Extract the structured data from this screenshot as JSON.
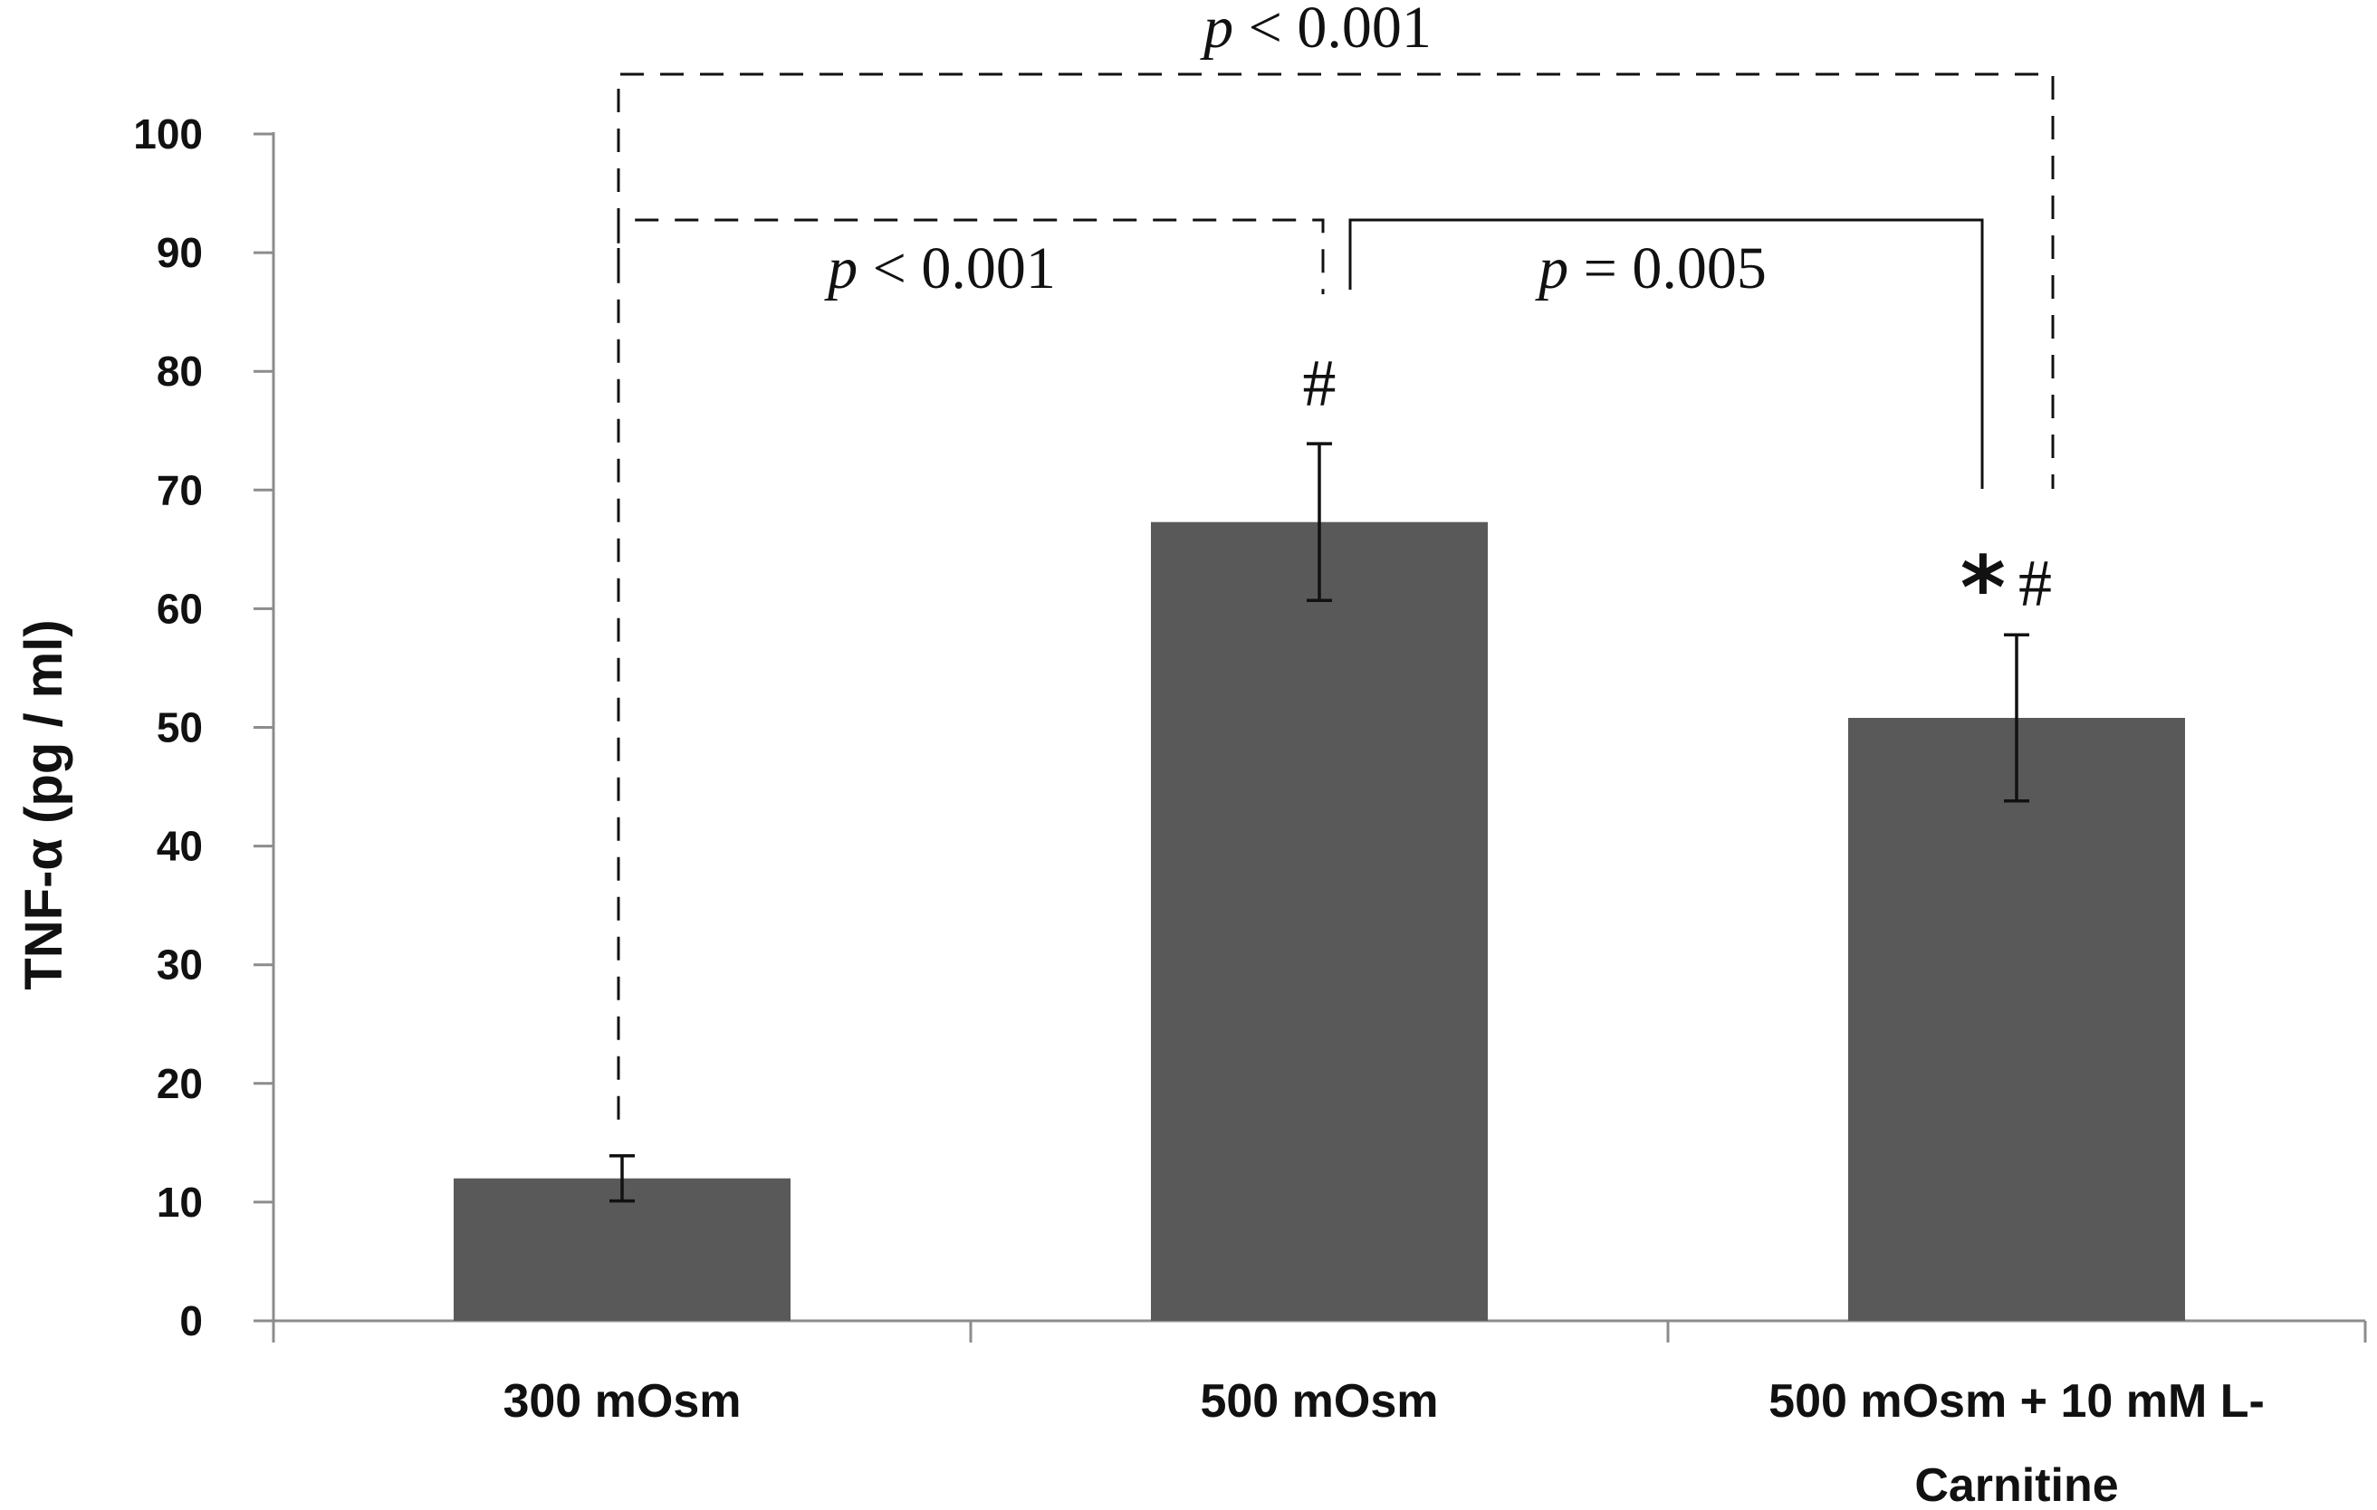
{
  "chart_data": {
    "type": "bar",
    "categories": [
      "300 mOsm",
      "500 mOsm",
      "500 mOsm + 10 mM L-Carnitine"
    ],
    "category_label_lines": [
      [
        "300 mOsm"
      ],
      [
        "500 mOsm"
      ],
      [
        "500 mOsm + 10 mM L-",
        "Carnitine"
      ]
    ],
    "values": [
      12,
      67.3,
      50.8
    ],
    "errors": [
      1.9,
      6.6,
      7.0
    ],
    "bar_color": "#595959",
    "title": "",
    "xlabel": "",
    "ylabel": "TNF-α (pg / ml)",
    "ylim": [
      0,
      100
    ],
    "yticks": [
      0,
      10,
      20,
      30,
      40,
      50,
      60,
      70,
      80,
      90,
      100
    ],
    "grid": false,
    "legend": "none",
    "bar_marks": [
      "",
      "#",
      "#"
    ],
    "bar_star": [
      "",
      "",
      "*"
    ],
    "comparisons": [
      {
        "from": 0,
        "to": 1,
        "style": "dashed",
        "p_symbol": "p",
        "p_text": " < 0.001"
      },
      {
        "from": 1,
        "to": 2,
        "style": "solid",
        "p_symbol": "p",
        "p_text": " = 0.005"
      },
      {
        "from": 0,
        "to": 2,
        "style": "dashed",
        "p_symbol": "p",
        "p_text": " < 0.001"
      }
    ]
  }
}
